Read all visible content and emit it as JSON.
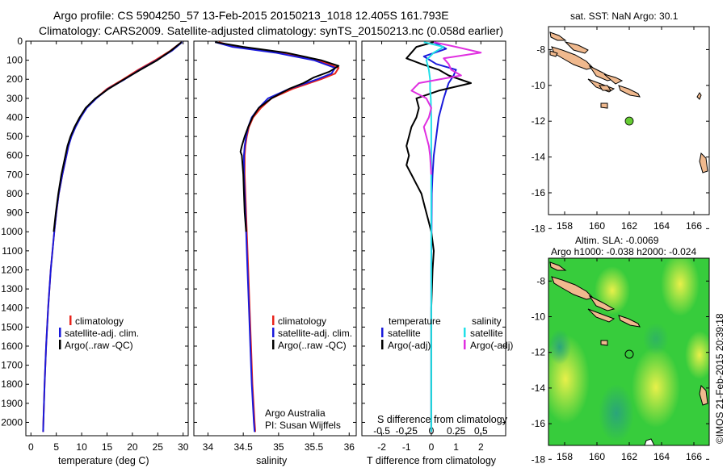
{
  "header": {
    "line1": "Argo profile: CS 5904250_57 13-Feb-2015 20150213_1018 12.405S 161.793E",
    "line2": "Climatology: CARS2009. Satellite-adjusted climatology: synTS_20150213.nc (0.058d earlier)"
  },
  "credit": "©IMOS 21-Feb-2015 20:39:18",
  "colors": {
    "climatology": "#e8231b",
    "satellite": "#1a1adb",
    "argo": "#000000",
    "sal_satellite": "#22e0e8",
    "sal_argo": "#e030e0"
  },
  "chart_data": [
    {
      "type": "line",
      "id": "temperature",
      "xlabel": "temperature (deg C)",
      "ylabel": "",
      "xlim": [
        -1,
        31
      ],
      "ylim": [
        2070,
        0
      ],
      "x_ticks": [
        0,
        5,
        10,
        15,
        20,
        25,
        30
      ],
      "y_ticks": [
        0,
        100,
        200,
        300,
        400,
        500,
        600,
        700,
        800,
        900,
        1000,
        1100,
        1200,
        1300,
        1400,
        1500,
        1600,
        1700,
        1800,
        1900,
        2000
      ],
      "legend": [
        "climatology",
        "satellite-adj. clim.",
        "Argo(..raw -QC)"
      ],
      "series": [
        {
          "name": "climatology",
          "color": "#e8231b",
          "depth": [
            5,
            50,
            100,
            150,
            200,
            250,
            300,
            350,
            400,
            450,
            500,
            550,
            600,
            700,
            800,
            900,
            1000,
            1200,
            1400,
            1600,
            1800,
            2000,
            2050
          ],
          "values": [
            29.7,
            27.5,
            24.5,
            21.2,
            18.2,
            15.0,
            12.8,
            10.9,
            9.7,
            8.7,
            7.9,
            7.4,
            7.0,
            6.2,
            5.5,
            5.0,
            4.6,
            3.9,
            3.4,
            3.0,
            2.7,
            2.45,
            2.4
          ]
        },
        {
          "name": "satellite-adj. clim.",
          "color": "#1a1adb",
          "depth": [
            5,
            50,
            100,
            150,
            200,
            250,
            300,
            350,
            400,
            450,
            500,
            550,
            600,
            700,
            800,
            900,
            1000,
            1200,
            1400,
            1600,
            1800,
            2000,
            2050
          ],
          "values": [
            29.8,
            27.8,
            24.8,
            21.5,
            18.5,
            15.2,
            12.9,
            11.0,
            9.8,
            8.8,
            8.0,
            7.4,
            7.0,
            6.2,
            5.5,
            5.0,
            4.6,
            3.9,
            3.4,
            3.0,
            2.7,
            2.45,
            2.4
          ]
        },
        {
          "name": "Argo(..raw -QC)",
          "color": "#000000",
          "depth": [
            5,
            50,
            100,
            150,
            200,
            250,
            300,
            350,
            400,
            450,
            500,
            550,
            600,
            700,
            800,
            900,
            1000
          ],
          "values": [
            29.7,
            27.6,
            24.9,
            21.6,
            18.4,
            15.3,
            12.7,
            10.8,
            9.6,
            8.6,
            7.8,
            7.2,
            6.8,
            6.0,
            5.4,
            4.9,
            4.5
          ]
        }
      ]
    },
    {
      "type": "line",
      "id": "salinity",
      "xlabel": "salinity",
      "ylabel": "",
      "xlim": [
        33.8,
        36.1
      ],
      "ylim": [
        2070,
        0
      ],
      "x_ticks": [
        34,
        34.5,
        35,
        35.5,
        36
      ],
      "legend": [
        "climatology",
        "satellite-adj. clim.",
        "Argo(..raw -QC)"
      ],
      "annotation": [
        "Argo Australia",
        "PI: Susan Wijffels"
      ],
      "series": [
        {
          "name": "climatology",
          "color": "#e8231b",
          "depth": [
            5,
            30,
            60,
            100,
            140,
            170,
            200,
            250,
            300,
            350,
            400,
            450,
            500,
            550,
            600,
            700,
            800,
            1000,
            1200,
            1400,
            1600,
            1800,
            2000,
            2050
          ],
          "values": [
            34.15,
            34.4,
            35.0,
            35.55,
            35.85,
            35.8,
            35.6,
            35.2,
            34.9,
            34.75,
            34.64,
            34.58,
            34.55,
            34.53,
            34.52,
            34.52,
            34.53,
            34.55,
            34.57,
            34.59,
            34.61,
            34.63,
            34.66,
            34.67
          ]
        },
        {
          "name": "satellite-adj. clim.",
          "color": "#1a1adb",
          "depth": [
            5,
            30,
            60,
            100,
            140,
            170,
            200,
            250,
            300,
            350,
            400,
            450,
            500,
            550,
            600,
            700,
            800,
            1000,
            1200,
            1400,
            1600,
            1800,
            2000,
            2050
          ],
          "values": [
            34.1,
            34.35,
            34.95,
            35.5,
            35.8,
            35.75,
            35.55,
            35.15,
            34.85,
            34.72,
            34.62,
            34.57,
            34.54,
            34.52,
            34.51,
            34.51,
            34.52,
            34.54,
            34.56,
            34.58,
            34.6,
            34.62,
            34.65,
            34.66
          ]
        },
        {
          "name": "Argo(..raw -QC)",
          "color": "#000000",
          "depth": [
            5,
            30,
            60,
            100,
            130,
            160,
            190,
            220,
            250,
            300,
            350,
            400,
            450,
            500,
            550,
            580,
            600,
            650,
            700,
            800,
            900,
            1000
          ],
          "values": [
            34.1,
            34.5,
            35.1,
            35.6,
            35.85,
            35.72,
            35.5,
            35.35,
            35.15,
            34.9,
            34.72,
            34.63,
            34.57,
            34.52,
            34.48,
            34.46,
            34.48,
            34.49,
            34.5,
            34.51,
            34.52,
            34.54
          ]
        }
      ]
    },
    {
      "type": "line",
      "id": "difference",
      "xlabel": "T difference from climatology",
      "xlabel_top": "S difference from climatology",
      "ylabel": "",
      "xlim": [
        -2.8,
        3
      ],
      "ylim": [
        2070,
        0
      ],
      "x_ticks": [
        -2,
        -1,
        0,
        1,
        2
      ],
      "x_ticks_top": [
        "-0.5",
        "-0.25",
        "0",
        "0.25",
        "0.5"
      ],
      "legend_left_title": "temperature",
      "legend_right_title": "salinity",
      "legend": [
        "satellite",
        "Argo(-adj)",
        "satellite",
        "Argo(-adj)"
      ],
      "series": [
        {
          "name": "temperature satellite",
          "color": "#1a1adb",
          "depth": [
            5,
            40,
            80,
            120,
            150,
            180,
            220,
            260,
            300,
            350,
            400,
            450,
            500,
            600,
            700,
            800,
            1000,
            1200,
            1500,
            2000,
            2050
          ],
          "values": [
            0.1,
            0.6,
            -0.3,
            0.2,
            1.0,
            0.9,
            0.7,
            0.6,
            0.5,
            0.4,
            0.3,
            0.25,
            0.2,
            0.1,
            0.05,
            0.02,
            0.01,
            0.0,
            0.0,
            0.0,
            0.0
          ]
        },
        {
          "name": "temperature Argo(-adj)",
          "color": "#000000",
          "depth": [
            5,
            30,
            60,
            90,
            120,
            150,
            180,
            220,
            260,
            300,
            350,
            400,
            450,
            500,
            550,
            600,
            650,
            700,
            750,
            800,
            850,
            900,
            950,
            1000,
            1100,
            1200,
            1400,
            1600,
            1800,
            2000,
            2050
          ],
          "values": [
            0.1,
            -0.6,
            -0.8,
            -1.0,
            -0.4,
            0.3,
            0.7,
            1.6,
            0.3,
            -0.6,
            -0.5,
            -0.6,
            -0.8,
            -0.9,
            -1.0,
            -0.9,
            -1.0,
            -0.8,
            -0.6,
            -0.4,
            -0.3,
            -0.2,
            -0.1,
            0.0,
            0.1,
            0.05,
            0.0,
            0.0,
            0.0,
            0.0,
            0.0
          ]
        },
        {
          "name": "salinity satellite",
          "color": "#22e0e8",
          "depth": [
            5,
            30,
            60,
            100,
            150,
            200,
            250,
            300,
            400,
            500,
            600,
            800,
            1000,
            1500,
            2000,
            2050
          ],
          "values": [
            -0.3,
            0.5,
            0.1,
            -0.2,
            -0.1,
            -0.05,
            -0.05,
            -0.02,
            0.0,
            0.0,
            0.0,
            0.0,
            0.0,
            0.0,
            0.0,
            0.0
          ]
        },
        {
          "name": "salinity Argo(-adj)",
          "color": "#e030e0",
          "depth": [
            5,
            30,
            60,
            90,
            120,
            150,
            180,
            220,
            260,
            300,
            350,
            400,
            450,
            500,
            550,
            600,
            700
          ],
          "values": [
            0.1,
            1.0,
            2.0,
            0.5,
            0.7,
            0.8,
            1.2,
            -0.5,
            -0.8,
            -0.2,
            0.0,
            -0.1,
            -0.3,
            -0.2,
            -0.1,
            -0.05,
            0.0
          ]
        }
      ]
    }
  ],
  "map_top": {
    "title": "sat. SST: NaN Argo: 30.1",
    "lon_ticks": [
      "158",
      "160",
      "162",
      "164",
      "166"
    ],
    "lat_ticks": [
      "-8",
      "-10",
      "-12",
      "-14",
      "-16",
      "-18"
    ],
    "marker_color": "#66cc33"
  },
  "map_bottom": {
    "title1": "Altim. SLA: -0.0069",
    "title2": "Argo h1000: -0.038 h2000: -0.024",
    "lon_ticks": [
      "158",
      "160",
      "162",
      "164",
      "166"
    ],
    "lat_ticks": [
      "-8",
      "-10",
      "-12",
      "-14",
      "-16",
      "-18"
    ]
  }
}
